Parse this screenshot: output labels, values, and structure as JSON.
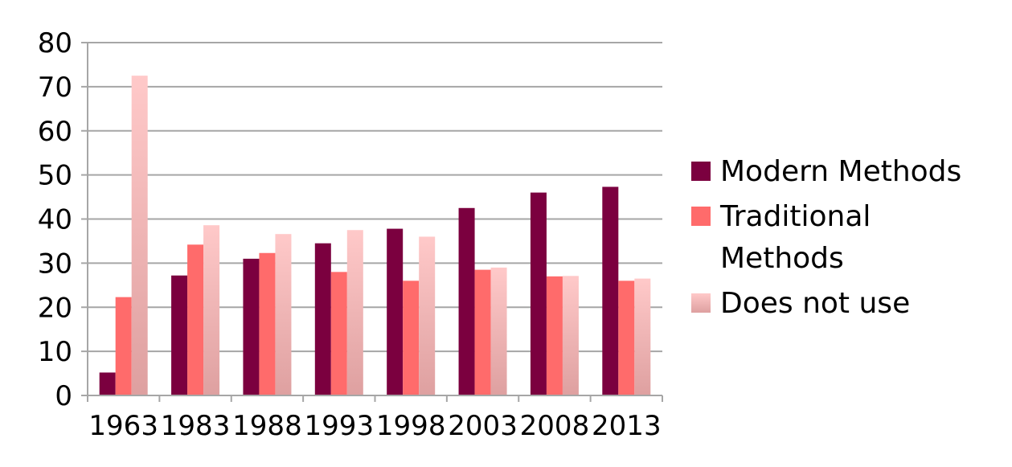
{
  "chart_data": {
    "type": "bar",
    "categories": [
      "1963",
      "1983",
      "1988",
      "1993",
      "1998",
      "2003",
      "2008",
      "2013"
    ],
    "series": [
      {
        "name": "Modern Methods",
        "values": [
          5.2,
          27.2,
          31.0,
          34.5,
          37.8,
          42.5,
          46.0,
          47.3
        ],
        "color": "#7b003f"
      },
      {
        "name": "Traditional Methods",
        "values": [
          22.3,
          34.2,
          32.3,
          28.0,
          26.0,
          28.5,
          27.0,
          26.0
        ],
        "color": "#ff6b6b"
      },
      {
        "name": "Does not use",
        "values": [
          72.5,
          38.6,
          36.6,
          37.5,
          36.0,
          29.0,
          27.1,
          26.5
        ],
        "color": "#f7b9b9"
      }
    ],
    "yticks": [
      "0",
      "10",
      "20",
      "30",
      "40",
      "50",
      "60",
      "70",
      "80"
    ],
    "ylim": [
      0,
      80
    ],
    "title": "",
    "xlabel": "",
    "ylabel": "",
    "grid": true,
    "legend_position": "right"
  }
}
